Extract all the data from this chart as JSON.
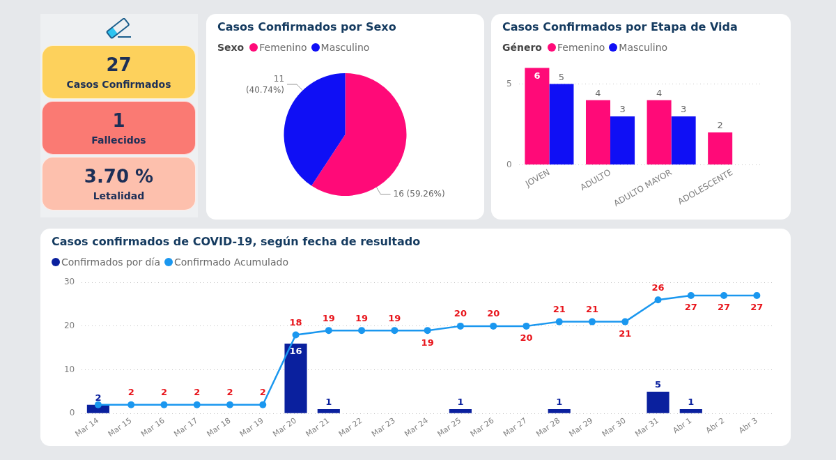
{
  "chart_data": [
    {
      "type": "other",
      "categories": [
        "Casos Confirmados",
        "Fallecidos",
        "Letalidad"
      ],
      "value_labels": [
        "27",
        "1",
        "3.70 %"
      ],
      "colors": [
        "#fdd15c",
        "#fa7a73",
        "#fdc0ad"
      ]
    },
    {
      "type": "pie",
      "title": "Casos Confirmados por Sexo",
      "legend_title": "Sexo",
      "legend": "top left",
      "categories": [
        "Femenino",
        "Masculino"
      ],
      "values": [
        16,
        11
      ],
      "colors": [
        "#ff0a78",
        "#0f0ff5"
      ],
      "value_labels": [
        "16 (59.26%)",
        "11 (40.74%)"
      ]
    },
    {
      "type": "bar",
      "title": "Casos Confirmados por Etapa de Vida",
      "legend_title": "Género",
      "legend": "top left",
      "categories": [
        "JOVEN",
        "ADULTO",
        "ADULTO MAYOR",
        "ADOLESCENTE"
      ],
      "series": [
        {
          "name": "Femenino",
          "color": "#ff0a78",
          "values": [
            6,
            4,
            4,
            2
          ]
        },
        {
          "name": "Masculino",
          "color": "#0f0ff5",
          "values": [
            5,
            3,
            3,
            null
          ]
        }
      ],
      "ylim": [
        0,
        6
      ],
      "yticks": [
        0,
        5
      ],
      "grid": "y",
      "data_labels": true
    },
    {
      "type": "bar",
      "title": "Casos confirmados de COVID-19, según fecha de resultado",
      "legend": "top left",
      "categories": [
        "Mar 14",
        "Mar 15",
        "Mar 16",
        "Mar 17",
        "Mar 18",
        "Mar 19",
        "Mar 20",
        "Mar 21",
        "Mar 22",
        "Mar 23",
        "Mar 24",
        "Mar 25",
        "Mar 26",
        "Mar 27",
        "Mar 28",
        "Mar 29",
        "Mar 30",
        "Mar 31",
        "Abr 1",
        "Abr 2",
        "Abr 3"
      ],
      "series": [
        {
          "name": "Confirmados por día",
          "type": "bar",
          "color": "#0a209e",
          "values": [
            2,
            null,
            null,
            null,
            null,
            null,
            16,
            1,
            null,
            null,
            null,
            1,
            null,
            null,
            1,
            null,
            null,
            5,
            1,
            null,
            null
          ],
          "value_labels": [
            "2",
            null,
            null,
            null,
            null,
            null,
            "16",
            "1",
            null,
            null,
            null,
            "1",
            null,
            null,
            "1",
            null,
            null,
            "5",
            "1",
            null,
            null
          ]
        },
        {
          "name": "Confirmado Acumulado",
          "type": "line",
          "color": "#1a97ef",
          "values": [
            2,
            2,
            2,
            2,
            2,
            2,
            18,
            19,
            19,
            19,
            19,
            20,
            20,
            20,
            21,
            21,
            21,
            26,
            27,
            27,
            27
          ],
          "value_labels": [
            null,
            "2",
            "2",
            "2",
            "2",
            "2",
            "18",
            "19",
            "19",
            "19",
            "19",
            "20",
            "20",
            "20",
            "21",
            "21",
            "21",
            "26",
            "27",
            "27",
            "27"
          ]
        }
      ],
      "ylim": [
        0,
        30
      ],
      "yticks": [
        0,
        10,
        20,
        30
      ],
      "grid": "y",
      "marker": "circle"
    }
  ]
}
